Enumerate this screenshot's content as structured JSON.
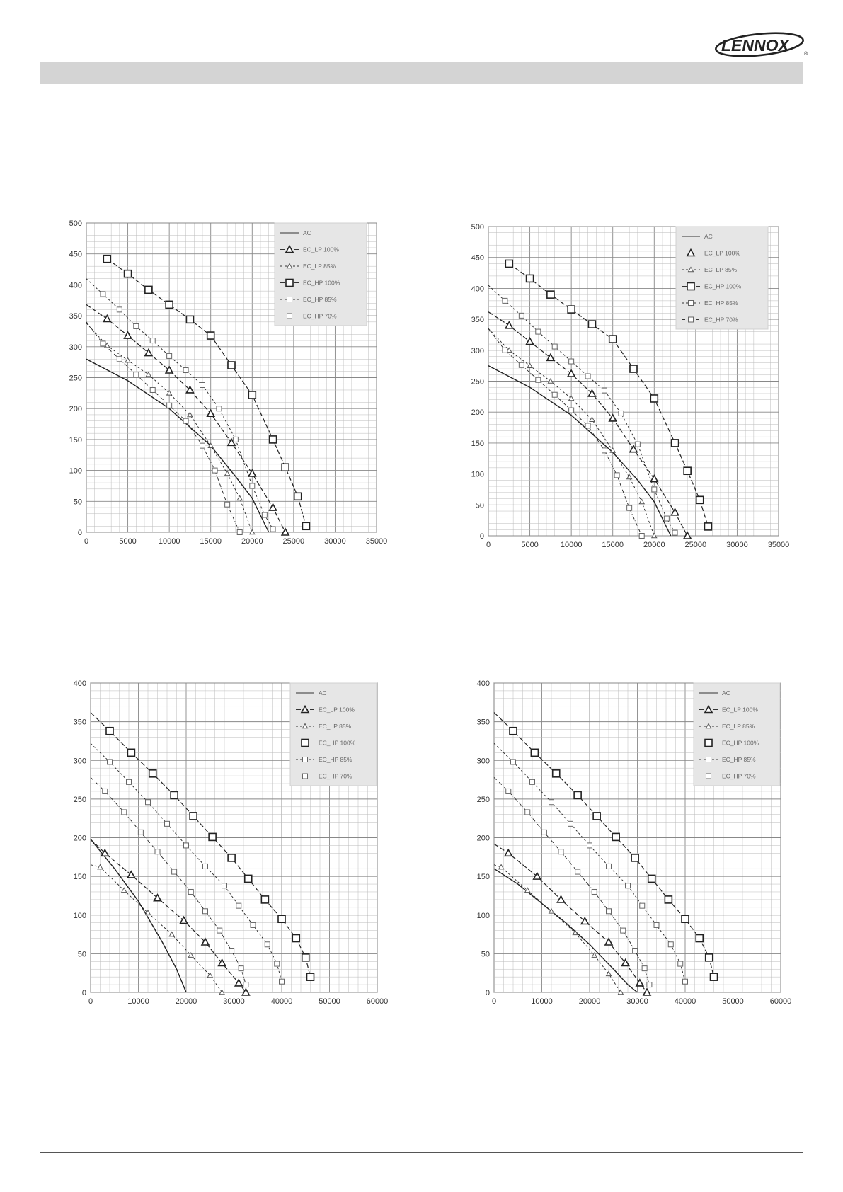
{
  "brand": {
    "logo": "LENNOX",
    "registered": "®"
  },
  "chart_data": [
    {
      "type": "line",
      "xlim": [
        0,
        35000
      ],
      "ylim": [
        0,
        500
      ],
      "xticks": [
        "0",
        "5000",
        "10000",
        "15000",
        "20000",
        "25000",
        "30000",
        "35000"
      ],
      "yticks": [
        "0",
        "50",
        "100",
        "150",
        "200",
        "250",
        "300",
        "350",
        "400",
        "450",
        "500"
      ],
      "grid": true,
      "legend_position": "top-right",
      "series": [
        {
          "name": "AC",
          "marker": "none",
          "dash": "solid",
          "x": [
            0,
            5000,
            10000,
            15000,
            18000,
            20000,
            22000
          ],
          "y": [
            280,
            245,
            200,
            140,
            90,
            55,
            0
          ]
        },
        {
          "name": "EC_LP 100%",
          "marker": "triangle",
          "dash": "long",
          "x": [
            0,
            2500,
            5000,
            7500,
            10000,
            12500,
            15000,
            17500,
            20000,
            22500,
            24000
          ],
          "y": [
            368,
            345,
            318,
            290,
            262,
            230,
            192,
            145,
            95,
            40,
            0
          ]
        },
        {
          "name": "EC_LP 85%",
          "marker": "triangle-small",
          "dash": "short",
          "x": [
            0,
            2500,
            5000,
            7500,
            10000,
            12500,
            15000,
            17000,
            18500,
            20000
          ],
          "y": [
            338,
            302,
            278,
            255,
            225,
            190,
            140,
            95,
            55,
            0
          ]
        },
        {
          "name": "EC_HP 100%",
          "marker": "square",
          "dash": "long",
          "x": [
            2500,
            5000,
            7500,
            10000,
            12500,
            15000,
            17500,
            20000,
            22500,
            24000,
            25500,
            26500
          ],
          "y": [
            442,
            418,
            392,
            368,
            344,
            318,
            270,
            222,
            150,
            105,
            58,
            10
          ]
        },
        {
          "name": "EC_HP 85%",
          "marker": "square-small",
          "dash": "short",
          "x": [
            0,
            2000,
            4000,
            6000,
            8000,
            10000,
            12000,
            14000,
            16000,
            18000,
            20000,
            21500,
            22500
          ],
          "y": [
            410,
            385,
            360,
            333,
            310,
            285,
            262,
            238,
            200,
            150,
            75,
            28,
            5
          ]
        },
        {
          "name": "EC_HP 70%",
          "marker": "square-small",
          "dash": "dashdot",
          "x": [
            0,
            2000,
            4000,
            6000,
            8000,
            10000,
            12000,
            14000,
            15500,
            17000,
            18500
          ],
          "y": [
            340,
            305,
            280,
            255,
            230,
            205,
            180,
            140,
            100,
            45,
            0
          ]
        }
      ]
    },
    {
      "type": "line",
      "xlim": [
        0,
        35000
      ],
      "ylim": [
        0,
        500
      ],
      "xticks": [
        "0",
        "5000",
        "10000",
        "15000",
        "20000",
        "25000",
        "30000",
        "35000"
      ],
      "yticks": [
        "0",
        "50",
        "100",
        "150",
        "200",
        "250",
        "300",
        "350",
        "400",
        "450",
        "500"
      ],
      "grid": true,
      "legend_position": "top-right",
      "series": [
        {
          "name": "AC",
          "marker": "none",
          "dash": "solid",
          "x": [
            0,
            5000,
            10000,
            15000,
            18000,
            20000,
            22000
          ],
          "y": [
            275,
            240,
            195,
            135,
            90,
            55,
            0
          ]
        },
        {
          "name": "EC_LP 100%",
          "marker": "triangle",
          "dash": "long",
          "x": [
            0,
            2500,
            5000,
            7500,
            10000,
            12500,
            15000,
            17500,
            20000,
            22500,
            24000
          ],
          "y": [
            362,
            340,
            314,
            288,
            262,
            230,
            190,
            140,
            92,
            38,
            0
          ]
        },
        {
          "name": "EC_LP 85%",
          "marker": "triangle-small",
          "dash": "short",
          "x": [
            0,
            2500,
            5000,
            7500,
            10000,
            12500,
            15000,
            17000,
            18500,
            20000
          ],
          "y": [
            335,
            300,
            275,
            250,
            222,
            188,
            138,
            95,
            55,
            0
          ]
        },
        {
          "name": "EC_HP 100%",
          "marker": "square",
          "dash": "long",
          "x": [
            2500,
            5000,
            7500,
            10000,
            12500,
            15000,
            17500,
            20000,
            22500,
            24000,
            25500,
            26500
          ],
          "y": [
            440,
            416,
            390,
            366,
            342,
            318,
            270,
            222,
            150,
            105,
            58,
            15
          ]
        },
        {
          "name": "EC_HP 85%",
          "marker": "square-small",
          "dash": "short",
          "x": [
            0,
            2000,
            4000,
            6000,
            8000,
            10000,
            12000,
            14000,
            16000,
            18000,
            20000,
            21500,
            22500
          ],
          "y": [
            405,
            380,
            356,
            330,
            306,
            282,
            258,
            235,
            198,
            148,
            75,
            28,
            5
          ]
        },
        {
          "name": "EC_HP 70%",
          "marker": "square-small",
          "dash": "dashdot",
          "x": [
            0,
            2000,
            4000,
            6000,
            8000,
            10000,
            12000,
            14000,
            15500,
            17000,
            18500
          ],
          "y": [
            335,
            300,
            276,
            252,
            228,
            203,
            178,
            138,
            98,
            45,
            0
          ]
        }
      ]
    },
    {
      "type": "line",
      "xlim": [
        0,
        60000
      ],
      "ylim": [
        0,
        400
      ],
      "xticks": [
        "0",
        "10000",
        "20000",
        "30000",
        "40000",
        "50000",
        "60000"
      ],
      "yticks": [
        "0",
        "50",
        "100",
        "150",
        "200",
        "250",
        "300",
        "350",
        "400"
      ],
      "grid": true,
      "legend_position": "top-right",
      "series": [
        {
          "name": "AC",
          "marker": "none",
          "dash": "solid",
          "x": [
            0,
            5000,
            10000,
            15000,
            18000,
            20000
          ],
          "y": [
            198,
            160,
            118,
            65,
            30,
            0
          ]
        },
        {
          "name": "EC_LP 100%",
          "marker": "triangle",
          "dash": "long",
          "x": [
            0,
            3000,
            8500,
            14000,
            19500,
            24000,
            27500,
            31000,
            32500
          ],
          "y": [
            198,
            180,
            152,
            122,
            93,
            65,
            38,
            12,
            0
          ]
        },
        {
          "name": "EC_LP 85%",
          "marker": "triangle-small",
          "dash": "short",
          "x": [
            0,
            2000,
            7000,
            12000,
            17000,
            21000,
            25000,
            27500
          ],
          "y": [
            165,
            162,
            132,
            103,
            75,
            48,
            22,
            0
          ]
        },
        {
          "name": "EC_HP 100%",
          "marker": "square",
          "dash": "long",
          "x": [
            0,
            4000,
            8500,
            13000,
            17500,
            21500,
            25500,
            29500,
            33000,
            36500,
            40000,
            43000,
            45000,
            46000
          ],
          "y": [
            362,
            338,
            310,
            283,
            255,
            228,
            201,
            174,
            147,
            120,
            95,
            70,
            45,
            20
          ]
        },
        {
          "name": "EC_HP 85%",
          "marker": "square-small",
          "dash": "short",
          "x": [
            0,
            4000,
            8000,
            12000,
            16000,
            20000,
            24000,
            28000,
            31000,
            34000,
            37000,
            39000,
            40000
          ],
          "y": [
            322,
            298,
            272,
            246,
            218,
            190,
            163,
            138,
            112,
            87,
            62,
            37,
            14
          ]
        },
        {
          "name": "EC_HP 70%",
          "marker": "square-small",
          "dash": "dashdot",
          "x": [
            0,
            3000,
            7000,
            10500,
            14000,
            17500,
            21000,
            24000,
            27000,
            29500,
            31500,
            32500
          ],
          "y": [
            278,
            260,
            233,
            207,
            182,
            156,
            130,
            105,
            80,
            54,
            31,
            10
          ]
        }
      ]
    },
    {
      "type": "line",
      "xlim": [
        0,
        60000
      ],
      "ylim": [
        0,
        400
      ],
      "xticks": [
        "0",
        "10000",
        "20000",
        "30000",
        "40000",
        "50000",
        "60000"
      ],
      "yticks": [
        "0",
        "50",
        "100",
        "150",
        "200",
        "250",
        "300",
        "350",
        "400"
      ],
      "grid": true,
      "legend_position": "top-right",
      "series": [
        {
          "name": "AC",
          "marker": "none",
          "dash": "solid",
          "x": [
            0,
            5000,
            10000,
            15000,
            20000,
            25000,
            28000,
            30000
          ],
          "y": [
            160,
            140,
            115,
            90,
            62,
            30,
            10,
            0
          ]
        },
        {
          "name": "EC_LP 100%",
          "marker": "triangle",
          "dash": "long",
          "x": [
            0,
            3000,
            9000,
            14000,
            19000,
            24000,
            27500,
            30500,
            32000
          ],
          "y": [
            192,
            180,
            150,
            120,
            92,
            65,
            38,
            12,
            0
          ]
        },
        {
          "name": "EC_LP 85%",
          "marker": "triangle-small",
          "dash": "short",
          "x": [
            0,
            1500,
            7000,
            12000,
            17000,
            21000,
            24000,
            26500
          ],
          "y": [
            165,
            162,
            132,
            105,
            77,
            48,
            24,
            0
          ]
        },
        {
          "name": "EC_HP 100%",
          "marker": "square",
          "dash": "long",
          "x": [
            0,
            4000,
            8500,
            13000,
            17500,
            21500,
            25500,
            29500,
            33000,
            36500,
            40000,
            43000,
            45000,
            46000
          ],
          "y": [
            362,
            338,
            310,
            283,
            255,
            228,
            201,
            174,
            147,
            120,
            95,
            70,
            45,
            20
          ]
        },
        {
          "name": "EC_HP 85%",
          "marker": "square-small",
          "dash": "short",
          "x": [
            0,
            4000,
            8000,
            12000,
            16000,
            20000,
            24000,
            28000,
            31000,
            34000,
            37000,
            39000,
            40000
          ],
          "y": [
            322,
            298,
            272,
            246,
            218,
            190,
            163,
            138,
            112,
            87,
            62,
            37,
            14
          ]
        },
        {
          "name": "EC_HP 70%",
          "marker": "square-small",
          "dash": "dashdot",
          "x": [
            0,
            3000,
            7000,
            10500,
            14000,
            17500,
            21000,
            24000,
            27000,
            29500,
            31500,
            32500
          ],
          "y": [
            278,
            260,
            233,
            207,
            182,
            156,
            130,
            105,
            80,
            54,
            31,
            10
          ]
        }
      ]
    }
  ]
}
